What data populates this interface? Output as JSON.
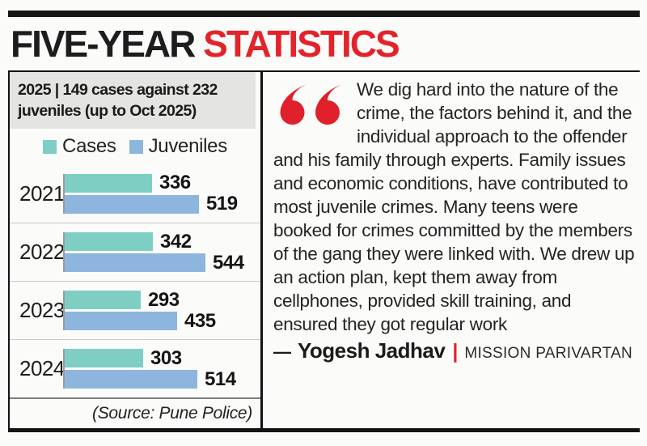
{
  "title": {
    "black": "FIVE-YEAR",
    "red": "STATISTICS"
  },
  "panel_left": {
    "header": "2025 | 149 cases against 232 juveniles (up to Oct 2025)",
    "legend": [
      {
        "label": "Cases",
        "color": "#7ecec4"
      },
      {
        "label": "Juveniles",
        "color": "#8db5dd"
      }
    ],
    "source": "(Source: Pune Police)"
  },
  "chart_data": {
    "type": "bar",
    "orientation": "horizontal",
    "title": "2025 | 149 cases against 232 juveniles (up to Oct 2025)",
    "categories": [
      "2021",
      "2022",
      "2023",
      "2024"
    ],
    "series": [
      {
        "name": "Cases",
        "color": "#7ecec4",
        "values": [
          336,
          342,
          293,
          303
        ]
      },
      {
        "name": "Juveniles",
        "color": "#8db5dd",
        "values": [
          519,
          544,
          435,
          514
        ]
      }
    ],
    "value_labels": true,
    "legend_position": "top",
    "grid": false,
    "xlim": [
      0,
      600
    ],
    "source": "(Source: Pune Police)"
  },
  "quote": {
    "text": "We dig hard into the nature of the crime, the factors behind it, and the individual approach to the offender and his family through experts. Family issues and economic conditions, have contributed to most juvenile crimes. Many teens were booked for crimes committed by the members of the gang they were linked with. We drew up an action plan, kept them away from cellphones, provided skill training, and ensured they got regular work",
    "attribution_dash": "—",
    "attribution_name": "Yogesh Jadhav",
    "attribution_sep": "|",
    "attribution_org": "MISSION PARIVARTAN"
  },
  "colors": {
    "accent_red": "#e3232a",
    "bar_cases": "#7ecec4",
    "bar_juveniles": "#8db5dd",
    "header_bg": "#e4e4e3",
    "rule_black": "#171717"
  }
}
